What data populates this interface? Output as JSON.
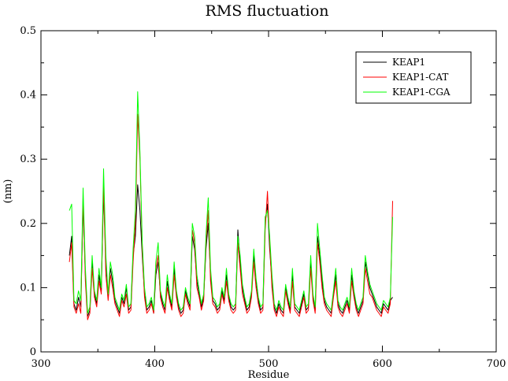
{
  "chart_data": {
    "type": "line",
    "title": "RMS fluctuation",
    "xlabel": "Residue",
    "ylabel": "(nm)",
    "xlim": [
      300,
      700
    ],
    "ylim": [
      0,
      0.5
    ],
    "xticks": [
      300,
      400,
      500,
      600,
      700
    ],
    "yticks": [
      0,
      0.1,
      0.2,
      0.3,
      0.4,
      0.5
    ],
    "xtick_labels": [
      "300",
      "400",
      "500",
      "600",
      "700"
    ],
    "ytick_labels": [
      "0",
      "0.1",
      "0.2",
      "0.3",
      "0.4",
      "0.5"
    ],
    "grid": false,
    "legend_position": "top-right",
    "x": [
      325,
      327,
      329,
      331,
      333,
      335,
      337,
      339,
      341,
      343,
      345,
      347,
      349,
      351,
      353,
      355,
      357,
      359,
      361,
      363,
      365,
      367,
      369,
      371,
      373,
      375,
      377,
      379,
      381,
      383,
      385,
      387,
      389,
      391,
      393,
      395,
      397,
      399,
      401,
      403,
      405,
      407,
      409,
      411,
      413,
      415,
      417,
      419,
      421,
      423,
      425,
      427,
      429,
      431,
      433,
      435,
      437,
      439,
      441,
      443,
      445,
      447,
      449,
      451,
      453,
      455,
      457,
      459,
      461,
      463,
      465,
      467,
      469,
      471,
      473,
      475,
      477,
      479,
      481,
      483,
      485,
      487,
      489,
      491,
      493,
      495,
      497,
      499,
      501,
      503,
      505,
      507,
      509,
      511,
      513,
      515,
      517,
      519,
      521,
      523,
      525,
      527,
      529,
      531,
      533,
      535,
      537,
      539,
      541,
      543,
      545,
      547,
      549,
      551,
      553,
      555,
      557,
      559,
      561,
      563,
      565,
      567,
      569,
      571,
      573,
      575,
      577,
      579,
      581,
      583,
      585,
      587,
      589,
      591,
      593,
      595,
      597,
      599,
      601,
      603,
      605,
      607,
      609
    ],
    "series": [
      {
        "name": "KEAP1",
        "color": "#000000",
        "values": [
          0.15,
          0.18,
          0.075,
          0.065,
          0.085,
          0.07,
          0.23,
          0.12,
          0.055,
          0.065,
          0.14,
          0.09,
          0.075,
          0.12,
          0.095,
          0.25,
          0.14,
          0.085,
          0.13,
          0.11,
          0.08,
          0.07,
          0.06,
          0.085,
          0.075,
          0.1,
          0.065,
          0.07,
          0.15,
          0.18,
          0.26,
          0.22,
          0.15,
          0.09,
          0.065,
          0.07,
          0.08,
          0.06,
          0.12,
          0.14,
          0.09,
          0.075,
          0.065,
          0.11,
          0.085,
          0.07,
          0.13,
          0.09,
          0.07,
          0.06,
          0.065,
          0.095,
          0.08,
          0.07,
          0.18,
          0.16,
          0.11,
          0.09,
          0.07,
          0.085,
          0.16,
          0.2,
          0.12,
          0.08,
          0.075,
          0.065,
          0.07,
          0.095,
          0.08,
          0.12,
          0.085,
          0.07,
          0.065,
          0.07,
          0.19,
          0.14,
          0.1,
          0.08,
          0.065,
          0.07,
          0.09,
          0.15,
          0.11,
          0.08,
          0.065,
          0.07,
          0.2,
          0.23,
          0.16,
          0.11,
          0.07,
          0.06,
          0.075,
          0.065,
          0.06,
          0.1,
          0.08,
          0.065,
          0.12,
          0.07,
          0.065,
          0.06,
          0.075,
          0.09,
          0.065,
          0.07,
          0.14,
          0.085,
          0.065,
          0.18,
          0.15,
          0.11,
          0.08,
          0.07,
          0.065,
          0.06,
          0.09,
          0.12,
          0.075,
          0.065,
          0.06,
          0.07,
          0.08,
          0.065,
          0.12,
          0.09,
          0.07,
          0.06,
          0.07,
          0.08,
          0.14,
          0.12,
          0.1,
          0.09,
          0.08,
          0.07,
          0.065,
          0.06,
          0.075,
          0.07,
          0.065,
          0.08,
          0.085
        ]
      },
      {
        "name": "KEAP1-CAT",
        "color": "#ff0000",
        "values": [
          0.14,
          0.17,
          0.07,
          0.06,
          0.075,
          0.06,
          0.24,
          0.11,
          0.05,
          0.06,
          0.13,
          0.085,
          0.07,
          0.11,
          0.09,
          0.26,
          0.12,
          0.08,
          0.12,
          0.1,
          0.075,
          0.065,
          0.055,
          0.08,
          0.07,
          0.09,
          0.06,
          0.065,
          0.14,
          0.2,
          0.37,
          0.3,
          0.16,
          0.085,
          0.06,
          0.065,
          0.075,
          0.06,
          0.13,
          0.15,
          0.085,
          0.07,
          0.06,
          0.1,
          0.08,
          0.065,
          0.12,
          0.085,
          0.065,
          0.055,
          0.06,
          0.09,
          0.075,
          0.065,
          0.19,
          0.17,
          0.1,
          0.085,
          0.065,
          0.08,
          0.17,
          0.22,
          0.11,
          0.075,
          0.07,
          0.06,
          0.065,
          0.09,
          0.075,
          0.11,
          0.08,
          0.065,
          0.06,
          0.065,
          0.17,
          0.13,
          0.09,
          0.075,
          0.06,
          0.065,
          0.085,
          0.14,
          0.1,
          0.075,
          0.06,
          0.065,
          0.19,
          0.25,
          0.17,
          0.1,
          0.065,
          0.055,
          0.07,
          0.06,
          0.055,
          0.095,
          0.075,
          0.06,
          0.11,
          0.065,
          0.06,
          0.055,
          0.07,
          0.085,
          0.06,
          0.065,
          0.13,
          0.08,
          0.06,
          0.17,
          0.14,
          0.1,
          0.075,
          0.065,
          0.06,
          0.055,
          0.085,
          0.11,
          0.07,
          0.06,
          0.055,
          0.065,
          0.075,
          0.06,
          0.11,
          0.085,
          0.065,
          0.055,
          0.065,
          0.075,
          0.13,
          0.11,
          0.09,
          0.085,
          0.075,
          0.065,
          0.06,
          0.055,
          0.07,
          0.065,
          0.06,
          0.075,
          0.235
        ]
      },
      {
        "name": "KEAP1-CGA",
        "color": "#00ff00",
        "values": [
          0.22,
          0.23,
          0.08,
          0.075,
          0.095,
          0.08,
          0.255,
          0.13,
          0.06,
          0.07,
          0.15,
          0.095,
          0.08,
          0.13,
          0.1,
          0.285,
          0.15,
          0.09,
          0.14,
          0.12,
          0.085,
          0.075,
          0.065,
          0.09,
          0.08,
          0.105,
          0.07,
          0.075,
          0.16,
          0.22,
          0.405,
          0.31,
          0.17,
          0.1,
          0.07,
          0.075,
          0.085,
          0.065,
          0.14,
          0.17,
          0.095,
          0.08,
          0.07,
          0.12,
          0.09,
          0.075,
          0.14,
          0.095,
          0.075,
          0.065,
          0.07,
          0.1,
          0.085,
          0.075,
          0.2,
          0.18,
          0.12,
          0.095,
          0.075,
          0.09,
          0.18,
          0.24,
          0.13,
          0.085,
          0.08,
          0.07,
          0.075,
          0.1,
          0.085,
          0.13,
          0.09,
          0.075,
          0.07,
          0.075,
          0.18,
          0.15,
          0.105,
          0.085,
          0.07,
          0.075,
          0.095,
          0.16,
          0.115,
          0.085,
          0.07,
          0.075,
          0.21,
          0.22,
          0.18,
          0.12,
          0.075,
          0.065,
          0.08,
          0.07,
          0.065,
          0.105,
          0.085,
          0.07,
          0.13,
          0.075,
          0.07,
          0.065,
          0.08,
          0.095,
          0.07,
          0.075,
          0.15,
          0.09,
          0.07,
          0.2,
          0.16,
          0.12,
          0.085,
          0.075,
          0.07,
          0.065,
          0.095,
          0.13,
          0.08,
          0.07,
          0.065,
          0.075,
          0.085,
          0.07,
          0.13,
          0.095,
          0.075,
          0.065,
          0.075,
          0.085,
          0.15,
          0.125,
          0.105,
          0.095,
          0.085,
          0.075,
          0.07,
          0.065,
          0.08,
          0.075,
          0.07,
          0.085,
          0.21
        ]
      }
    ]
  }
}
